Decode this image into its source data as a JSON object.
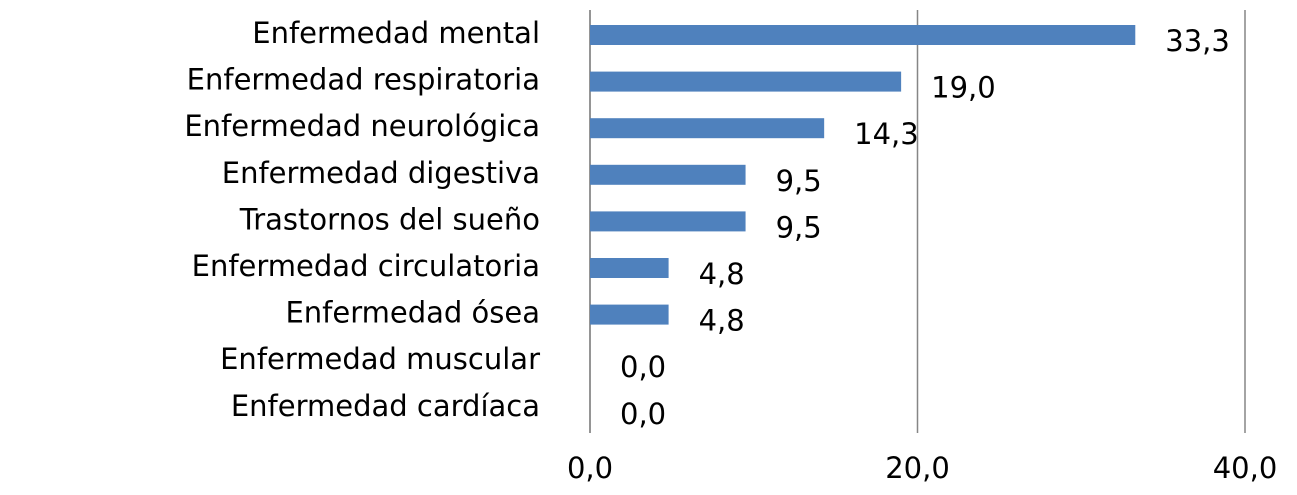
{
  "chart_data": {
    "type": "hbar",
    "categories": [
      "Enfermedad mental",
      "Enfermedad respiratoria",
      "Enfermedad neurológica",
      "Enfermedad digestiva",
      "Trastornos del sueño",
      "Enfermedad circulatoria",
      "Enfermedad ósea",
      "Enfermedad muscular",
      "Enfermedad cardíaca"
    ],
    "values": [
      33.3,
      19.0,
      14.3,
      9.5,
      9.5,
      4.8,
      4.8,
      0.0,
      0.0
    ],
    "value_labels": [
      "33,3",
      "19,0",
      "14,3",
      "9,5",
      "9,5",
      "4,8",
      "4,8",
      "0,0",
      "0,0"
    ],
    "color": "#4f81bd",
    "xlim": [
      0,
      40
    ],
    "xticks": [
      {
        "value": 0,
        "label": "0,0"
      },
      {
        "value": 20,
        "label": "20,0"
      },
      {
        "value": 40,
        "label": "40,0"
      }
    ],
    "grid": true
  }
}
